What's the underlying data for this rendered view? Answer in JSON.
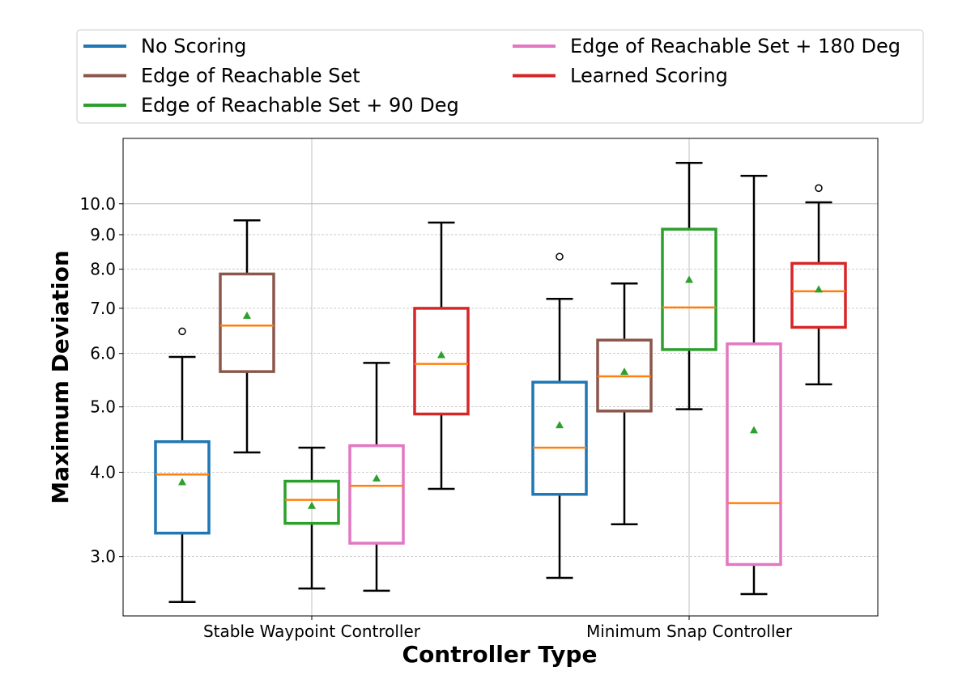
{
  "chart_data": {
    "type": "box",
    "title": "",
    "xlabel": "Controller Type",
    "ylabel": "Maximum Deviation",
    "yscale": "log",
    "ylim": [
      2.45,
      12.5
    ],
    "yticks": [
      3.0,
      4.0,
      5.0,
      6.0,
      7.0,
      8.0,
      9.0,
      10.0
    ],
    "ytick_labels": [
      "3.0",
      "4.0",
      "5.0",
      "6.0",
      "7.0",
      "8.0",
      "9.0",
      "10.0"
    ],
    "grid": true,
    "legend_position": "top, above plot, 2 columns",
    "categories": [
      "Stable Waypoint Controller",
      "Minimum Snap Controller"
    ],
    "median_color": "#ff7f0e",
    "mean_color": "#2ca02c",
    "series": [
      {
        "name": "No Scoring",
        "color": "#1f77b4",
        "boxes": [
          {
            "whislo": 2.57,
            "q1": 3.25,
            "median": 3.97,
            "q3": 4.44,
            "whishi": 5.93,
            "mean": 3.87,
            "fliers": [
              6.47
            ]
          },
          {
            "whislo": 2.79,
            "q1": 3.71,
            "median": 4.35,
            "q3": 5.44,
            "whishi": 7.23,
            "mean": 4.7,
            "fliers": [
              8.35
            ]
          }
        ]
      },
      {
        "name": "Edge of Reachable Set",
        "color": "#8c564b",
        "boxes": [
          {
            "whislo": 4.28,
            "q1": 5.64,
            "median": 6.6,
            "q3": 7.87,
            "whishi": 9.45,
            "mean": 6.83,
            "fliers": []
          },
          {
            "whislo": 3.35,
            "q1": 4.93,
            "median": 5.55,
            "q3": 6.28,
            "whishi": 7.62,
            "mean": 5.64,
            "fliers": []
          }
        ]
      },
      {
        "name": "Edge of Reachable Set + 90 Deg",
        "color": "#2ca02c",
        "boxes": [
          {
            "whislo": 2.69,
            "q1": 3.36,
            "median": 3.64,
            "q3": 3.88,
            "whishi": 4.35,
            "mean": 3.57,
            "fliers": []
          },
          {
            "whislo": 4.96,
            "q1": 6.08,
            "median": 7.02,
            "q3": 9.17,
            "whishi": 11.5,
            "mean": 7.72,
            "fliers": []
          }
        ]
      },
      {
        "name": "Edge of Reachable Set + 180 Deg",
        "color": "#e377c2",
        "boxes": [
          {
            "whislo": 2.67,
            "q1": 3.14,
            "median": 3.82,
            "q3": 4.38,
            "whishi": 5.81,
            "mean": 3.92,
            "fliers": []
          },
          {
            "whislo": 2.64,
            "q1": 2.92,
            "median": 3.6,
            "q3": 6.2,
            "whishi": 11.0,
            "mean": 4.62,
            "fliers": []
          }
        ]
      },
      {
        "name": "Learned Scoring",
        "color": "#d62728",
        "boxes": [
          {
            "whislo": 3.78,
            "q1": 4.88,
            "median": 5.79,
            "q3": 7.0,
            "whishi": 9.38,
            "mean": 5.97,
            "fliers": []
          },
          {
            "whislo": 5.4,
            "q1": 6.56,
            "median": 7.42,
            "q3": 8.16,
            "whishi": 10.05,
            "mean": 7.47,
            "fliers": [
              10.55
            ]
          }
        ]
      }
    ]
  }
}
